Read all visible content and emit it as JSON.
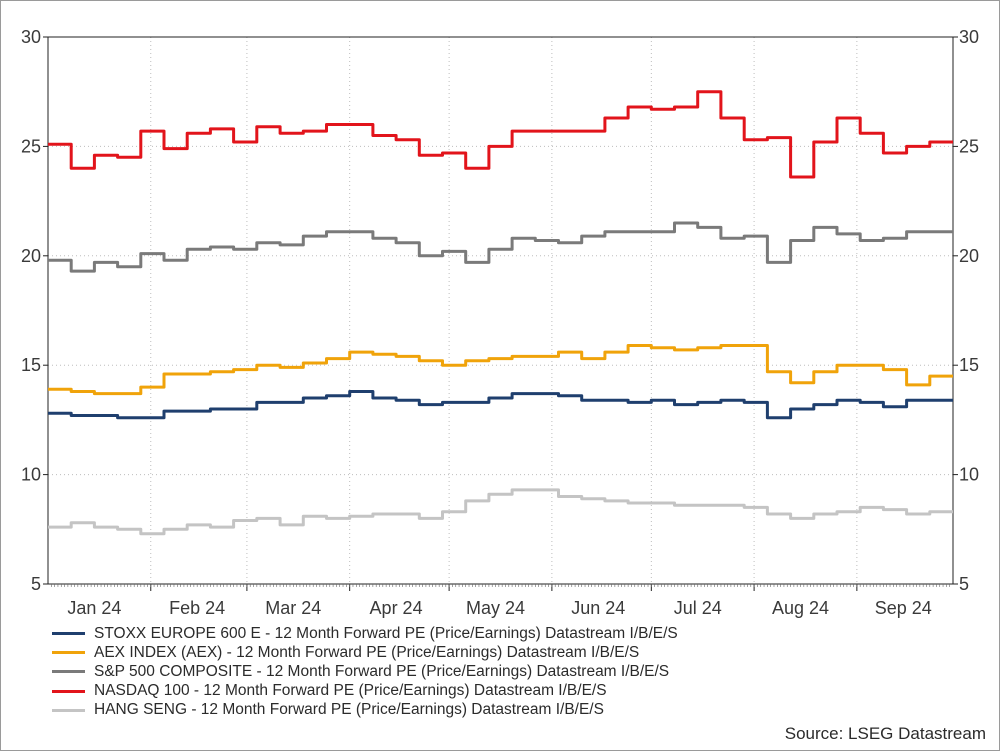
{
  "chart_data": {
    "type": "line",
    "x_tick_labels": [
      "Jan 24",
      "Feb 24",
      "Mar 24",
      "Apr 24",
      "May 24",
      "Jun 24",
      "Jul 24",
      "Aug 24",
      "Sep 24"
    ],
    "x_tick_dates": [
      "2024-01-15",
      "2024-02-15",
      "2024-03-15",
      "2024-04-15",
      "2024-05-15",
      "2024-06-15",
      "2024-07-15",
      "2024-08-15",
      "2024-09-15"
    ],
    "x_range": [
      "2024-01-01",
      "2024-09-30"
    ],
    "y_ticks": [
      5,
      10,
      15,
      20,
      25,
      30
    ],
    "ylim": [
      5,
      30
    ],
    "y_axis_both_sides": true,
    "grid": "dotted",
    "legend_placement": "bottom",
    "source": "Source: LSEG Datastream",
    "series": [
      {
        "name": "STOXX EUROPE 600 E - 12 Month Forward PE (Price/Earnings) Datastream I/B/E/S",
        "color": "#1f3f6e",
        "dates": [
          "2024-01-01",
          "2024-01-08",
          "2024-01-15",
          "2024-01-22",
          "2024-01-29",
          "2024-02-05",
          "2024-02-12",
          "2024-02-19",
          "2024-02-26",
          "2024-03-04",
          "2024-03-11",
          "2024-03-18",
          "2024-03-25",
          "2024-04-01",
          "2024-04-08",
          "2024-04-15",
          "2024-04-22",
          "2024-04-29",
          "2024-05-06",
          "2024-05-13",
          "2024-05-20",
          "2024-05-27",
          "2024-06-03",
          "2024-06-10",
          "2024-06-17",
          "2024-06-24",
          "2024-07-01",
          "2024-07-08",
          "2024-07-15",
          "2024-07-22",
          "2024-07-29",
          "2024-08-05",
          "2024-08-12",
          "2024-08-19",
          "2024-08-26",
          "2024-09-02",
          "2024-09-09",
          "2024-09-16",
          "2024-09-23",
          "2024-09-30"
        ],
        "values": [
          12.8,
          12.7,
          12.7,
          12.6,
          12.6,
          12.9,
          12.9,
          13.0,
          13.0,
          13.3,
          13.3,
          13.5,
          13.6,
          13.8,
          13.5,
          13.4,
          13.2,
          13.3,
          13.3,
          13.5,
          13.7,
          13.7,
          13.6,
          13.4,
          13.4,
          13.3,
          13.4,
          13.2,
          13.3,
          13.4,
          13.3,
          12.6,
          13.0,
          13.2,
          13.4,
          13.3,
          13.1,
          13.4,
          13.4,
          13.4
        ]
      },
      {
        "name": "AEX INDEX (AEX) - 12 Month Forward PE (Price/Earnings) Datastream I/B/E/S",
        "color": "#f0a30a",
        "dates": [
          "2024-01-01",
          "2024-01-08",
          "2024-01-15",
          "2024-01-22",
          "2024-01-29",
          "2024-02-05",
          "2024-02-12",
          "2024-02-19",
          "2024-02-26",
          "2024-03-04",
          "2024-03-11",
          "2024-03-18",
          "2024-03-25",
          "2024-04-01",
          "2024-04-08",
          "2024-04-15",
          "2024-04-22",
          "2024-04-29",
          "2024-05-06",
          "2024-05-13",
          "2024-05-20",
          "2024-05-27",
          "2024-06-03",
          "2024-06-10",
          "2024-06-17",
          "2024-06-24",
          "2024-07-01",
          "2024-07-08",
          "2024-07-15",
          "2024-07-22",
          "2024-07-29",
          "2024-08-05",
          "2024-08-12",
          "2024-08-19",
          "2024-08-26",
          "2024-09-02",
          "2024-09-09",
          "2024-09-16",
          "2024-09-23",
          "2024-09-30"
        ],
        "values": [
          13.9,
          13.8,
          13.7,
          13.7,
          14.0,
          14.6,
          14.6,
          14.7,
          14.8,
          15.0,
          14.9,
          15.1,
          15.3,
          15.6,
          15.5,
          15.4,
          15.2,
          15.0,
          15.2,
          15.3,
          15.4,
          15.4,
          15.6,
          15.3,
          15.6,
          15.9,
          15.8,
          15.7,
          15.8,
          15.9,
          15.9,
          14.7,
          14.2,
          14.7,
          15.0,
          15.0,
          14.8,
          14.1,
          14.5,
          14.5
        ]
      },
      {
        "name": "S&P 500 COMPOSITE - 12 Month Forward PE (Price/Earnings) Datastream I/B/E/S",
        "color": "#7a7a7a",
        "dates": [
          "2024-01-01",
          "2024-01-08",
          "2024-01-15",
          "2024-01-22",
          "2024-01-29",
          "2024-02-05",
          "2024-02-12",
          "2024-02-19",
          "2024-02-26",
          "2024-03-04",
          "2024-03-11",
          "2024-03-18",
          "2024-03-25",
          "2024-04-01",
          "2024-04-08",
          "2024-04-15",
          "2024-04-22",
          "2024-04-29",
          "2024-05-06",
          "2024-05-13",
          "2024-05-20",
          "2024-05-27",
          "2024-06-03",
          "2024-06-10",
          "2024-06-17",
          "2024-06-24",
          "2024-07-01",
          "2024-07-08",
          "2024-07-15",
          "2024-07-22",
          "2024-07-29",
          "2024-08-05",
          "2024-08-12",
          "2024-08-19",
          "2024-08-26",
          "2024-09-02",
          "2024-09-09",
          "2024-09-16",
          "2024-09-23",
          "2024-09-30"
        ],
        "values": [
          19.8,
          19.3,
          19.7,
          19.5,
          20.1,
          19.8,
          20.3,
          20.4,
          20.3,
          20.6,
          20.5,
          20.9,
          21.1,
          21.1,
          20.8,
          20.6,
          20.0,
          20.2,
          19.7,
          20.3,
          20.8,
          20.7,
          20.6,
          20.9,
          21.1,
          21.1,
          21.1,
          21.5,
          21.3,
          20.8,
          20.9,
          19.7,
          20.7,
          21.3,
          21.0,
          20.7,
          20.8,
          21.1,
          21.1,
          21.1
        ]
      },
      {
        "name": "NASDAQ 100 - 12 Month Forward PE (Price/Earnings) Datastream I/B/E/S",
        "color": "#e2141b",
        "dates": [
          "2024-01-01",
          "2024-01-08",
          "2024-01-15",
          "2024-01-22",
          "2024-01-29",
          "2024-02-05",
          "2024-02-12",
          "2024-02-19",
          "2024-02-26",
          "2024-03-04",
          "2024-03-11",
          "2024-03-18",
          "2024-03-25",
          "2024-04-01",
          "2024-04-08",
          "2024-04-15",
          "2024-04-22",
          "2024-04-29",
          "2024-05-06",
          "2024-05-13",
          "2024-05-20",
          "2024-05-27",
          "2024-06-03",
          "2024-06-10",
          "2024-06-17",
          "2024-06-24",
          "2024-07-01",
          "2024-07-08",
          "2024-07-15",
          "2024-07-22",
          "2024-07-29",
          "2024-08-05",
          "2024-08-12",
          "2024-08-19",
          "2024-08-26",
          "2024-09-02",
          "2024-09-09",
          "2024-09-16",
          "2024-09-23",
          "2024-09-30"
        ],
        "values": [
          25.1,
          24.0,
          24.6,
          24.5,
          25.7,
          24.9,
          25.6,
          25.8,
          25.2,
          25.9,
          25.6,
          25.7,
          26.0,
          26.0,
          25.5,
          25.3,
          24.6,
          24.7,
          24.0,
          25.0,
          25.7,
          25.7,
          25.7,
          25.7,
          26.3,
          26.8,
          26.7,
          26.8,
          27.5,
          26.3,
          25.3,
          25.4,
          23.6,
          25.2,
          26.3,
          25.6,
          24.7,
          25.0,
          25.2,
          25.2
        ]
      },
      {
        "name": "HANG SENG - 12 Month Forward PE (Price/Earnings) Datastream I/B/E/S",
        "color": "#c4c4c4",
        "dates": [
          "2024-01-01",
          "2024-01-08",
          "2024-01-15",
          "2024-01-22",
          "2024-01-29",
          "2024-02-05",
          "2024-02-12",
          "2024-02-19",
          "2024-02-26",
          "2024-03-04",
          "2024-03-11",
          "2024-03-18",
          "2024-03-25",
          "2024-04-01",
          "2024-04-08",
          "2024-04-15",
          "2024-04-22",
          "2024-04-29",
          "2024-05-06",
          "2024-05-13",
          "2024-05-20",
          "2024-05-27",
          "2024-06-03",
          "2024-06-10",
          "2024-06-17",
          "2024-06-24",
          "2024-07-01",
          "2024-07-08",
          "2024-07-15",
          "2024-07-22",
          "2024-07-29",
          "2024-08-05",
          "2024-08-12",
          "2024-08-19",
          "2024-08-26",
          "2024-09-02",
          "2024-09-09",
          "2024-09-16",
          "2024-09-23",
          "2024-09-30"
        ],
        "values": [
          7.6,
          7.8,
          7.6,
          7.5,
          7.3,
          7.5,
          7.7,
          7.6,
          7.9,
          8.0,
          7.7,
          8.1,
          8.0,
          8.1,
          8.2,
          8.2,
          8.0,
          8.3,
          8.8,
          9.1,
          9.3,
          9.3,
          9.0,
          8.9,
          8.8,
          8.7,
          8.7,
          8.6,
          8.6,
          8.6,
          8.5,
          8.2,
          8.0,
          8.2,
          8.3,
          8.5,
          8.4,
          8.2,
          8.3,
          8.3
        ]
      }
    ]
  }
}
